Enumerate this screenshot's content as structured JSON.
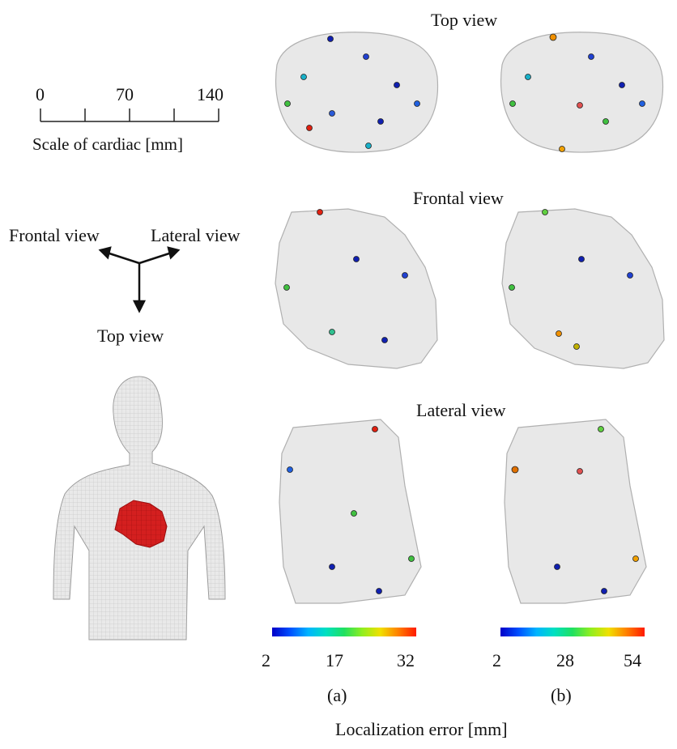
{
  "scale": {
    "ticks": [
      "0",
      "70",
      "140"
    ],
    "label": "Scale of cardiac [mm]"
  },
  "views": {
    "top": "Top view",
    "frontal": "Frontal view",
    "lateral": "Lateral view"
  },
  "axes_legend": {
    "frontal": "Frontal view",
    "lateral": "Lateral view",
    "top": "Top view"
  },
  "colorbars": {
    "a": {
      "min": "2",
      "mid": "17",
      "max": "32"
    },
    "b": {
      "min": "2",
      "mid": "28",
      "max": "54"
    }
  },
  "panels": [
    "(a)",
    "(b)"
  ],
  "x_axis_label": "Localization error [mm]",
  "colors": {
    "heart": "#d41f1f",
    "mesh": "#c8c8c8",
    "low_error": "#1020b0",
    "high_error": "#e02010"
  }
}
